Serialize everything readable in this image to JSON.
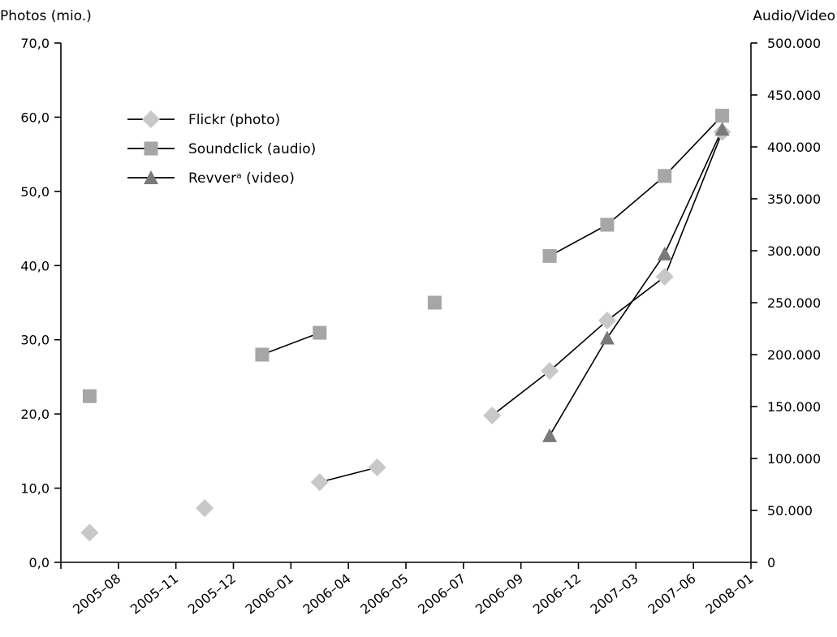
{
  "chart_data": {
    "type": "line",
    "left_axis_title": "Photos (mio.)",
    "right_axis_title": "Audio/Video",
    "categories": [
      "2005–08",
      "2005–11",
      "2005–12",
      "2006–01",
      "2006–04",
      "2006–05",
      "2006–07",
      "2006–09",
      "2006–12",
      "2007–03",
      "2007–06",
      "2008–01"
    ],
    "left_ticks": [
      "0,0",
      "10,0",
      "20,0",
      "30,0",
      "40,0",
      "50,0",
      "60,0",
      "70,0"
    ],
    "right_ticks": [
      "0",
      "50.000",
      "100.000",
      "150.000",
      "200.000",
      "250.000",
      "300.000",
      "350.000",
      "400.000",
      "450.000",
      "500.000"
    ],
    "ylim_left": [
      0,
      70
    ],
    "ylim_right": [
      0,
      500000
    ],
    "legend_placement": "upper-left",
    "series": [
      {
        "name": "Flickr (photo)",
        "axis": "left",
        "color": "#c8c8c8",
        "marker": "diamond",
        "points": [
          {
            "x": "2005–08",
            "y": 4.0,
            "connect_prev": false
          },
          {
            "x": "2005–12",
            "y": 7.3,
            "connect_prev": false
          },
          {
            "x": "2006–04",
            "y": 10.8,
            "connect_prev": false
          },
          {
            "x": "2006–05",
            "y": 12.8,
            "connect_prev": true
          },
          {
            "x": "2006–09",
            "y": 19.8,
            "connect_prev": false
          },
          {
            "x": "2006–12",
            "y": 25.8,
            "connect_prev": true
          },
          {
            "x": "2007–03",
            "y": 32.6,
            "connect_prev": true
          },
          {
            "x": "2007–06",
            "y": 38.5,
            "connect_prev": true
          },
          {
            "x": "2008–01",
            "y": 58.0,
            "connect_prev": true
          }
        ]
      },
      {
        "name": "Soundclick (audio)",
        "axis": "right",
        "color": "#a6a6a6",
        "marker": "square",
        "points": [
          {
            "x": "2005–08",
            "y": 160000,
            "connect_prev": false
          },
          {
            "x": "2006–01",
            "y": 200000,
            "connect_prev": false
          },
          {
            "x": "2006–04",
            "y": 221000,
            "connect_prev": true
          },
          {
            "x": "2006–07",
            "y": 250000,
            "connect_prev": false
          },
          {
            "x": "2006–12",
            "y": 295000,
            "connect_prev": false
          },
          {
            "x": "2007–03",
            "y": 325000,
            "connect_prev": true
          },
          {
            "x": "2007–06",
            "y": 372000,
            "connect_prev": true
          },
          {
            "x": "2008–01",
            "y": 430000,
            "connect_prev": true
          }
        ]
      },
      {
        "name": "Revverᵃ (video)",
        "axis": "right",
        "color": "#7a7a7a",
        "marker": "triangle",
        "points": [
          {
            "x": "2006–12",
            "y": 122000,
            "connect_prev": false
          },
          {
            "x": "2007–03",
            "y": 216000,
            "connect_prev": true
          },
          {
            "x": "2007–06",
            "y": 297000,
            "connect_prev": true
          },
          {
            "x": "2008–01",
            "y": 417000,
            "connect_prev": true
          }
        ]
      }
    ]
  }
}
